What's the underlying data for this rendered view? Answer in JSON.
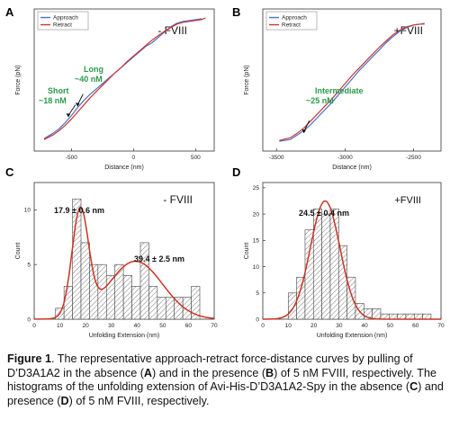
{
  "chart_data": [
    {
      "type": "line",
      "panel_label": "A",
      "condition_label": "- FVIII",
      "xlabel": "Distance (nm)",
      "ylabel": "Force (pN)",
      "xlim": [
        -800,
        650
      ],
      "ylim": [
        -5,
        75
      ],
      "xticks": [
        -500,
        0,
        500
      ],
      "legend": {
        "position": "top-left",
        "entries": [
          "Approach",
          "Retract"
        ]
      },
      "series": [
        {
          "name": "Approach",
          "color": "#4a72c4",
          "x": [
            -720,
            -650,
            -600,
            -550,
            -500,
            -450,
            -400,
            -350,
            -300,
            -250,
            -200,
            -150,
            -100,
            -50,
            0,
            50,
            100,
            150,
            200,
            250,
            300,
            350,
            400,
            450,
            500,
            550
          ],
          "y": [
            2,
            5,
            7.5,
            11,
            15,
            19.5,
            23.5,
            27,
            30,
            33,
            36,
            39,
            42,
            45,
            48,
            51,
            54,
            56,
            59,
            62,
            65,
            67,
            68,
            68.5,
            69,
            69.5
          ]
        },
        {
          "name": "Retract",
          "color": "#cc3333",
          "x": [
            -720,
            -650,
            -600,
            -550,
            -500,
            -450,
            -400,
            -350,
            -300,
            -250,
            -200,
            -150,
            -100,
            -50,
            0,
            50,
            100,
            150,
            200,
            250,
            300,
            350,
            400,
            450,
            500,
            550,
            580
          ],
          "y": [
            1.5,
            4,
            6.5,
            9.5,
            13,
            17,
            21,
            25,
            28.5,
            32,
            35.5,
            39,
            42,
            45.5,
            48.5,
            51.5,
            54.5,
            57.5,
            60,
            62.5,
            64.5,
            66.5,
            67.5,
            68,
            68.5,
            69,
            70
          ]
        }
      ],
      "annotations": [
        {
          "lines": [
            "Short",
            "~18 nM"
          ],
          "color": "#2a9a4a",
          "arrow_to": [
            -525,
            14
          ]
        },
        {
          "lines": [
            "Long",
            "~40 nM"
          ],
          "color": "#2a9a4a",
          "arrow_to": [
            -450,
            20
          ]
        }
      ]
    },
    {
      "type": "line",
      "panel_label": "B",
      "condition_label": "+FVIII",
      "xlabel": "Distance (nm)",
      "ylabel": "Force (pN)",
      "xlim": [
        -3600,
        -2300
      ],
      "ylim": [
        -5,
        75
      ],
      "xticks": [
        -3500,
        -3000,
        -2500
      ],
      "legend": {
        "position": "top-left",
        "entries": [
          "Approach",
          "Retract"
        ]
      },
      "series": [
        {
          "name": "Approach",
          "color": "#4a72c4",
          "x": [
            -3480,
            -3400,
            -3350,
            -3300,
            -3250,
            -3200,
            -3150,
            -3100,
            -3050,
            -3000,
            -2950,
            -2900,
            -2850,
            -2800,
            -2750,
            -2700,
            -2650,
            -2600,
            -2550,
            -2500,
            -2450,
            -2420
          ],
          "y": [
            0.5,
            1.5,
            4,
            6.5,
            10,
            14,
            18,
            22,
            26.5,
            31,
            35.5,
            40,
            44,
            48,
            52,
            56,
            59.5,
            62.5,
            64.5,
            66,
            66.5,
            67
          ]
        },
        {
          "name": "Retract",
          "color": "#cc3333",
          "x": [
            -3480,
            -3400,
            -3350,
            -3300,
            -3250,
            -3200,
            -3150,
            -3100,
            -3050,
            -3000,
            -2950,
            -2900,
            -2850,
            -2800,
            -2750,
            -2700,
            -2650,
            -2600,
            -2550,
            -2500,
            -2450,
            -2420
          ],
          "y": [
            1,
            2.5,
            5,
            8,
            12,
            16,
            20,
            24,
            28.5,
            33,
            37.5,
            41.5,
            45.5,
            49.5,
            53.5,
            57,
            60.5,
            63,
            65,
            66,
            66.5,
            66.5
          ]
        }
      ],
      "annotations": [
        {
          "lines": [
            "Intermediate",
            "~25 nM"
          ],
          "color": "#2a9a4a",
          "arrow_to": [
            -3300,
            5
          ]
        }
      ]
    },
    {
      "type": "bar",
      "panel_label": "C",
      "condition_label": "- FVIII",
      "xlabel": "Unfolding Extension (nm)",
      "ylabel": "Count",
      "xlim": [
        0,
        70
      ],
      "ylim": [
        0,
        12.5
      ],
      "xticks": [
        0,
        10,
        20,
        30,
        40,
        50,
        60,
        70
      ],
      "yticks": [
        0,
        5,
        10
      ],
      "bin_width": 3.3,
      "bin_starts": [
        8.3,
        11.6,
        14.9,
        18.2,
        21.5,
        24.8,
        28.1,
        31.4,
        34.7,
        38,
        41.3,
        44.6,
        47.9,
        51.2,
        54.5,
        57.8,
        61.1
      ],
      "values": [
        1,
        3,
        11,
        7,
        5,
        5,
        4,
        5,
        4,
        3,
        7,
        3,
        2,
        2,
        2,
        2,
        3
      ],
      "fit_curve": {
        "type": "gaussian_sum",
        "color": "#cc3322",
        "components": [
          {
            "mean": 17.9,
            "sigma": 3.2,
            "amplitude": 9.6
          },
          {
            "mean": 39.4,
            "sigma": 10.5,
            "amplitude": 5.3
          }
        ]
      },
      "peak_labels": [
        "17.9 ± 0.6 nm",
        "39.4 ± 2.5 nm"
      ]
    },
    {
      "type": "bar",
      "panel_label": "D",
      "condition_label": "+FVIII",
      "xlabel": "Unfolding Extension (nm)",
      "ylabel": "Count",
      "xlim": [
        0,
        70
      ],
      "ylim": [
        0,
        26
      ],
      "xticks": [
        0,
        10,
        20,
        30,
        40,
        50,
        60,
        70
      ],
      "yticks": [
        0,
        5,
        10,
        15,
        20,
        25
      ],
      "bin_width": 3.3,
      "bin_starts": [
        10,
        13.3,
        16.6,
        19.9,
        23.2,
        26.5,
        29.8,
        33.1,
        36.4,
        39.7,
        43,
        46.3,
        49.6,
        52.9,
        56.2,
        59.5,
        62.8
      ],
      "values": [
        5,
        8,
        17,
        21,
        20,
        21,
        14,
        8,
        3,
        2,
        2,
        1,
        1,
        1,
        1,
        1,
        1
      ],
      "fit_curve": {
        "type": "gaussian",
        "color": "#cc3322",
        "components": [
          {
            "mean": 24.5,
            "sigma": 5.8,
            "amplitude": 22.5
          }
        ]
      },
      "peak_labels": [
        "24.5 ± 0.4 nm"
      ]
    }
  ],
  "caption": {
    "label": "Figure 1",
    "s1": ". The representative approach-retract force-distance curves by pulling of D’D3A1A2 in the absence (",
    "A": "A",
    "s2": ") and in the presence (",
    "B": "B",
    "s3": ") of 5 nM FVIII, respectively. The histograms of the unfolding extension of Avi-His-D’D3A1A2-Spy in the absence (",
    "C": "C",
    "s4": ") and presence (",
    "D": "D",
    "s5": ") of 5 nM FVIII, respectively."
  }
}
